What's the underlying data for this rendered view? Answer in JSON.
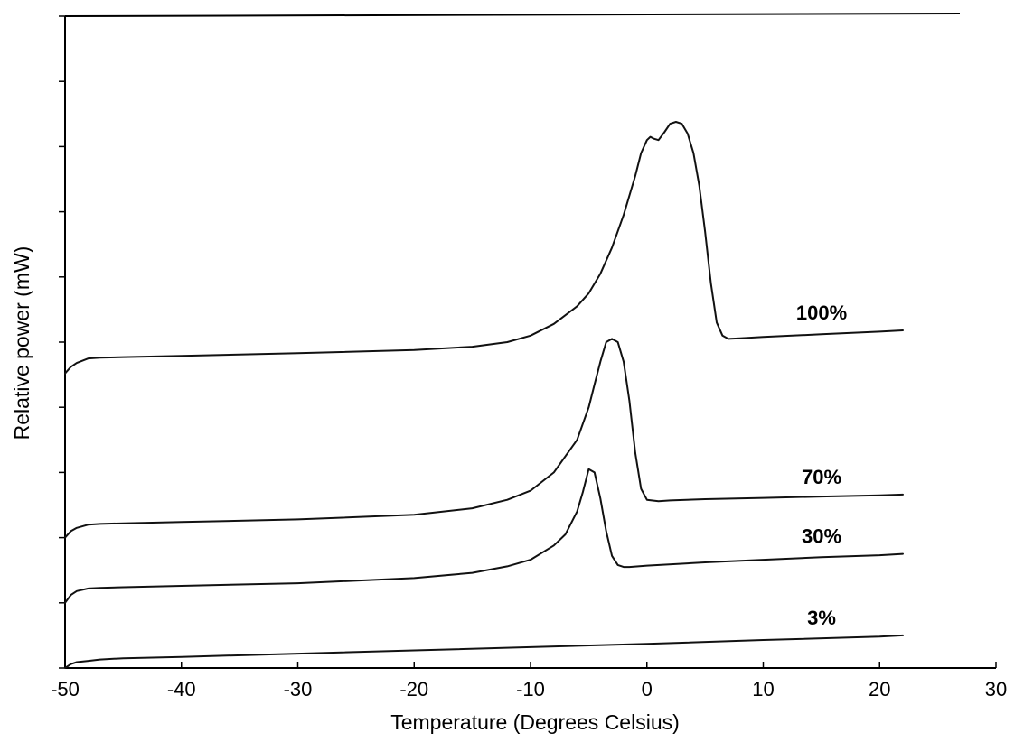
{
  "chart_data": {
    "type": "line",
    "xlabel": "Temperature (Degrees Celsius)",
    "ylabel": "Relative power (mW)",
    "xlim": [
      -50,
      30
    ],
    "ylim": [
      0,
      10
    ],
    "x_ticks": [
      -50,
      -40,
      -30,
      -20,
      -10,
      0,
      10,
      20,
      30
    ],
    "x_tick_labels": [
      "-50",
      "-40",
      "-30",
      "-20",
      "-10",
      "0",
      "10",
      "20",
      "30"
    ],
    "y_ticks": [
      0,
      1,
      2,
      3,
      4,
      5,
      6,
      7,
      8,
      9,
      10
    ],
    "y_tick_labels_shown": false,
    "grid": false,
    "legend": "none; series labeled inline at right end of each curve",
    "series": [
      {
        "name": "100%",
        "x": [
          -50,
          -49.5,
          -49,
          -48,
          -47,
          -45,
          -40,
          -30,
          -20,
          -15,
          -12,
          -10,
          -8,
          -6,
          -5,
          -4,
          -3,
          -2,
          -1,
          -0.5,
          0,
          0.3,
          0.6,
          1,
          1.5,
          2,
          2.5,
          3,
          3.5,
          4,
          4.5,
          5,
          5.5,
          6,
          6.5,
          7,
          8,
          10,
          15,
          20,
          22
        ],
        "y": [
          4.52,
          4.62,
          4.68,
          4.75,
          4.76,
          4.77,
          4.79,
          4.83,
          4.88,
          4.93,
          5.0,
          5.1,
          5.28,
          5.55,
          5.75,
          6.05,
          6.45,
          6.95,
          7.55,
          7.9,
          8.1,
          8.15,
          8.12,
          8.1,
          8.22,
          8.35,
          8.38,
          8.35,
          8.2,
          7.9,
          7.4,
          6.7,
          5.9,
          5.3,
          5.1,
          5.05,
          5.06,
          5.08,
          5.12,
          5.16,
          5.18
        ]
      },
      {
        "name": "70%",
        "x": [
          -50,
          -49.5,
          -49,
          -48,
          -47,
          -45,
          -40,
          -30,
          -20,
          -15,
          -12,
          -10,
          -8,
          -6,
          -5,
          -4.5,
          -4,
          -3.5,
          -3,
          -2.5,
          -2,
          -1.5,
          -1,
          -0.5,
          0,
          1,
          2,
          5,
          10,
          15,
          20,
          22
        ],
        "y": [
          2.0,
          2.1,
          2.15,
          2.2,
          2.21,
          2.22,
          2.24,
          2.28,
          2.35,
          2.45,
          2.58,
          2.72,
          3.0,
          3.5,
          4.0,
          4.35,
          4.7,
          5.0,
          5.05,
          5.0,
          4.7,
          4.1,
          3.3,
          2.75,
          2.58,
          2.56,
          2.57,
          2.59,
          2.61,
          2.63,
          2.65,
          2.66
        ]
      },
      {
        "name": "30%",
        "x": [
          -50,
          -49.5,
          -49,
          -48,
          -47,
          -45,
          -40,
          -30,
          -20,
          -15,
          -12,
          -10,
          -8,
          -7,
          -6,
          -5.5,
          -5,
          -4.5,
          -4,
          -3.5,
          -3,
          -2.5,
          -2,
          -1.5,
          0,
          5,
          10,
          15,
          20,
          22
        ],
        "y": [
          1.0,
          1.12,
          1.18,
          1.22,
          1.23,
          1.24,
          1.26,
          1.3,
          1.38,
          1.46,
          1.56,
          1.66,
          1.88,
          2.05,
          2.4,
          2.7,
          3.05,
          3.0,
          2.6,
          2.1,
          1.72,
          1.58,
          1.55,
          1.55,
          1.57,
          1.62,
          1.66,
          1.7,
          1.73,
          1.75
        ]
      },
      {
        "name": "3%",
        "x": [
          -50,
          -49.5,
          -49,
          -48,
          -47,
          -45,
          -40,
          -30,
          -20,
          -10,
          0,
          10,
          20,
          22
        ],
        "y": [
          0.0,
          0.06,
          0.09,
          0.11,
          0.13,
          0.15,
          0.17,
          0.22,
          0.27,
          0.32,
          0.37,
          0.43,
          0.48,
          0.5
        ]
      }
    ]
  }
}
